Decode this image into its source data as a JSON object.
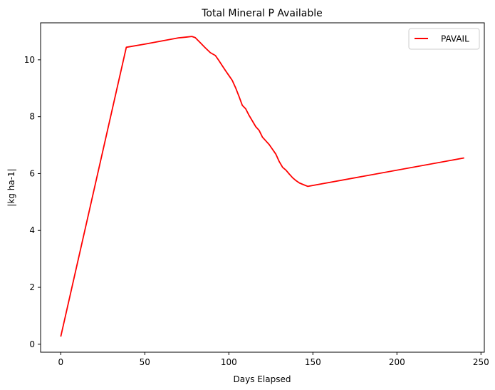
{
  "chart_data": {
    "type": "line",
    "title": "Total Mineral P Available",
    "xlabel": "Days Elapsed",
    "ylabel": "|kg ha-1|",
    "xlim": [
      -12,
      252
    ],
    "ylim": [
      -0.28,
      11.3
    ],
    "xticks": [
      0,
      50,
      100,
      150,
      200,
      250
    ],
    "yticks": [
      0,
      2,
      4,
      6,
      8,
      10
    ],
    "grid": false,
    "legend_position": "top-right",
    "series": [
      {
        "name": "PAVAIL",
        "color": "#ff0000",
        "x": [
          0,
          39,
          50,
          60,
          70,
          75,
          78,
          80,
          83,
          86,
          89,
          92,
          94,
          96,
          98,
          100,
          102,
          104,
          106,
          108,
          110,
          112,
          114,
          116,
          118,
          120,
          122,
          124,
          126,
          128,
          130,
          132,
          134,
          136,
          138,
          140,
          142,
          144,
          147,
          240
        ],
        "y": [
          0.27,
          10.44,
          10.55,
          10.66,
          10.77,
          10.8,
          10.82,
          10.78,
          10.6,
          10.42,
          10.25,
          10.15,
          9.98,
          9.8,
          9.62,
          9.45,
          9.28,
          9.02,
          8.72,
          8.4,
          8.28,
          8.05,
          7.85,
          7.65,
          7.52,
          7.28,
          7.15,
          7.02,
          6.85,
          6.68,
          6.42,
          6.22,
          6.12,
          5.98,
          5.85,
          5.75,
          5.67,
          5.62,
          5.55,
          6.55
        ]
      }
    ]
  }
}
